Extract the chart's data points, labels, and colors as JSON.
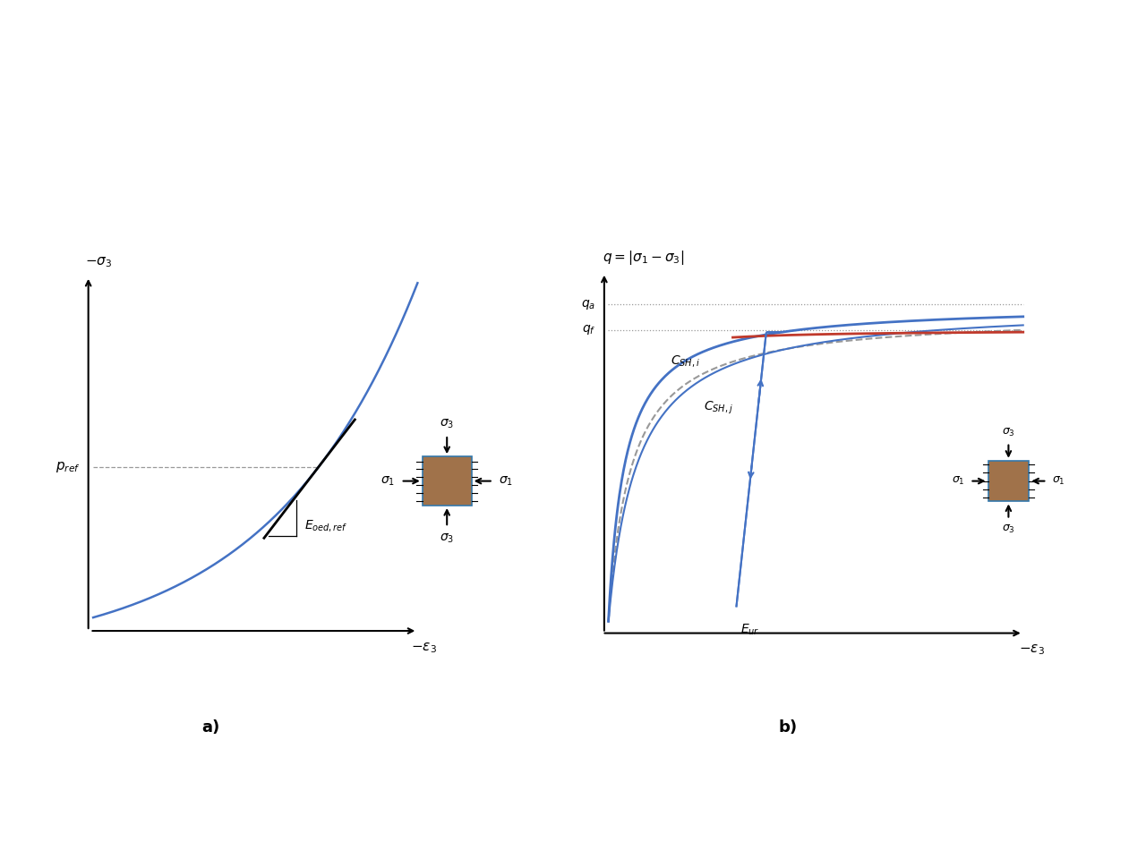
{
  "fig_width": 12.8,
  "fig_height": 9.6,
  "bg_color": "#ffffff",
  "panel_a": {
    "label": "a)",
    "ylabel": "$-\\sigma_3$",
    "xlabel": "$-\\varepsilon_3$",
    "curve_color": "#4472C4",
    "tangent_color": "#000000",
    "pref_label": "$p_{ref}$",
    "eoed_label": "$E_{oed,ref}$",
    "dashed_color": "#999999"
  },
  "panel_b": {
    "label": "b)",
    "ylabel": "$q = |\\sigma_1 - \\sigma_3|$",
    "xlabel": "$-\\varepsilon_3$",
    "curve_color": "#4472C4",
    "dashed_color": "#999999",
    "red_color": "#C0392B",
    "qa_label": "$q_a$",
    "qf_label": "$q_f$",
    "cshi_label": "$C_{SH,i}$",
    "cshj_label": "$C_{SH,j}$",
    "eur_label": "$E_{ur}$"
  },
  "soil_color": "#A0724A",
  "soil_edge_color": "#3377AA"
}
